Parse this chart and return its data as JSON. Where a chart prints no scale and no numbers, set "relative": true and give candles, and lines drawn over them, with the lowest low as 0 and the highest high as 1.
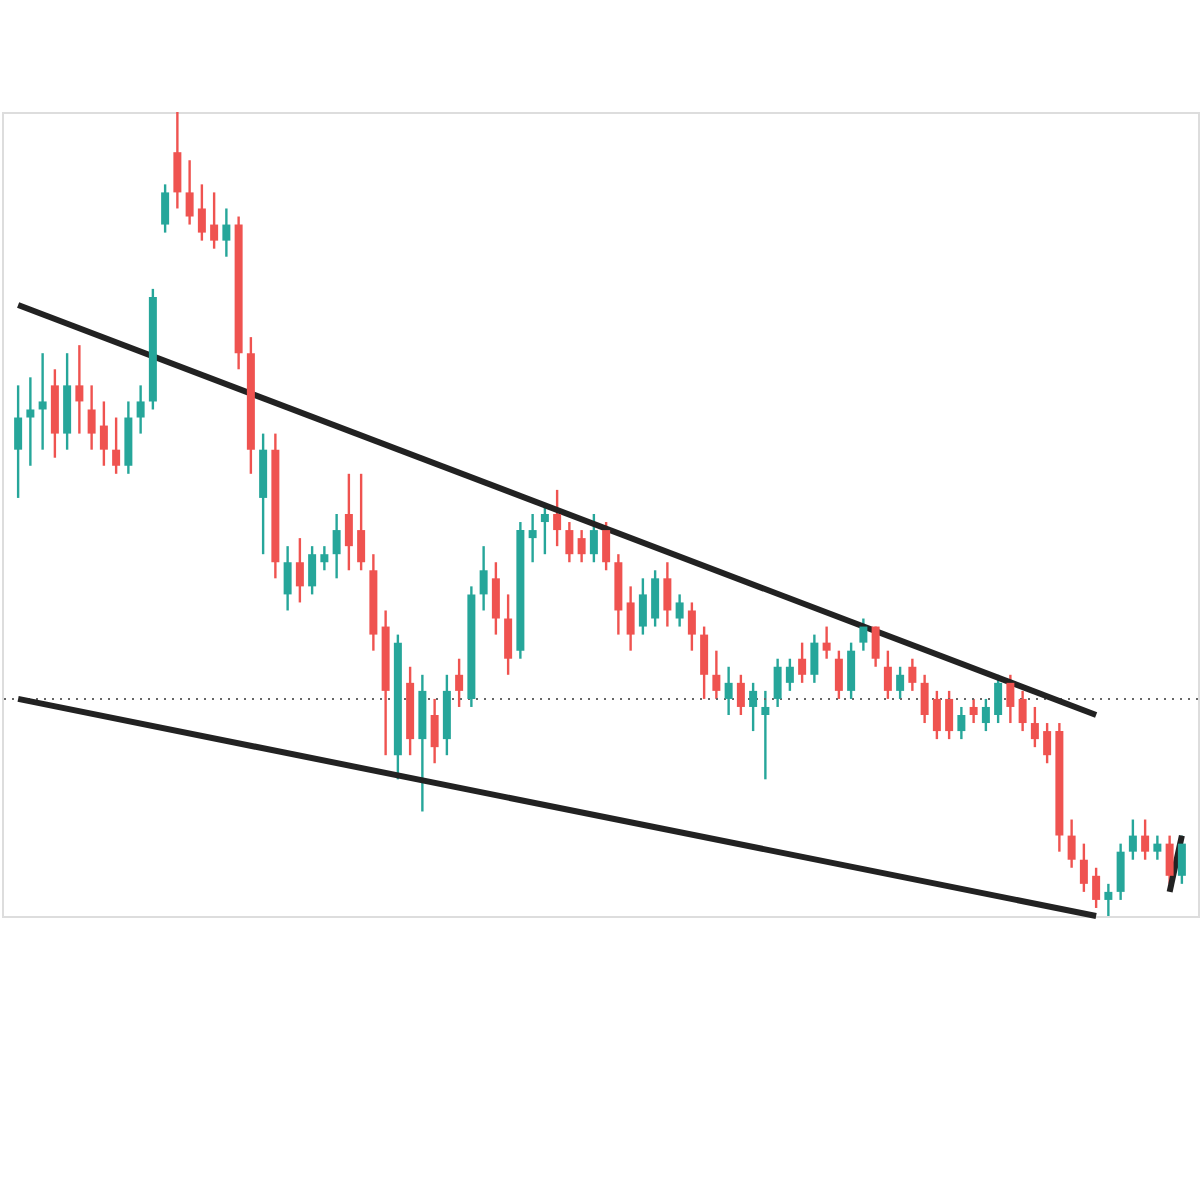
{
  "chart_data": {
    "type": "candlestick",
    "relative": true,
    "tick_labels": false,
    "categories": [
      null,
      null,
      null,
      null,
      null,
      null,
      null,
      null,
      null,
      null,
      null,
      null,
      null,
      null,
      null,
      null,
      null,
      null,
      null,
      null,
      null,
      null,
      null,
      null,
      null,
      null,
      null,
      null,
      null,
      null,
      null,
      null,
      null,
      null,
      null,
      null,
      null,
      null,
      null,
      null,
      null,
      null,
      null,
      null,
      null,
      null,
      null,
      null,
      null,
      null,
      null,
      null,
      null,
      null,
      null,
      null,
      null,
      null,
      null,
      null,
      null,
      null,
      null,
      null,
      null,
      null,
      null,
      null,
      null,
      null,
      null,
      null,
      null,
      null,
      null,
      null,
      null,
      null,
      null,
      null,
      null,
      null,
      null,
      null,
      null,
      null,
      null,
      null,
      null,
      null,
      null,
      null,
      null,
      null,
      null,
      null
    ],
    "ohlc": [
      [
        0.58,
        0.66,
        0.52,
        0.62
      ],
      [
        0.62,
        0.67,
        0.56,
        0.63
      ],
      [
        0.63,
        0.7,
        0.58,
        0.64
      ],
      [
        0.66,
        0.68,
        0.57,
        0.6
      ],
      [
        0.6,
        0.7,
        0.58,
        0.66
      ],
      [
        0.66,
        0.71,
        0.6,
        0.64
      ],
      [
        0.63,
        0.66,
        0.58,
        0.6
      ],
      [
        0.61,
        0.64,
        0.56,
        0.58
      ],
      [
        0.58,
        0.62,
        0.55,
        0.56
      ],
      [
        0.56,
        0.64,
        0.55,
        0.62
      ],
      [
        0.62,
        0.66,
        0.6,
        0.64
      ],
      [
        0.64,
        0.78,
        0.63,
        0.77
      ],
      [
        0.86,
        0.91,
        0.85,
        0.9
      ],
      [
        0.95,
        1.0,
        0.88,
        0.9
      ],
      [
        0.9,
        0.94,
        0.86,
        0.87
      ],
      [
        0.88,
        0.91,
        0.84,
        0.85
      ],
      [
        0.86,
        0.9,
        0.83,
        0.84
      ],
      [
        0.84,
        0.88,
        0.82,
        0.86
      ],
      [
        0.86,
        0.87,
        0.68,
        0.7
      ],
      [
        0.7,
        0.72,
        0.55,
        0.58
      ],
      [
        0.52,
        0.6,
        0.45,
        0.58
      ],
      [
        0.58,
        0.6,
        0.42,
        0.44
      ],
      [
        0.4,
        0.46,
        0.38,
        0.44
      ],
      [
        0.44,
        0.47,
        0.39,
        0.41
      ],
      [
        0.41,
        0.46,
        0.4,
        0.45
      ],
      [
        0.44,
        0.46,
        0.43,
        0.45
      ],
      [
        0.45,
        0.5,
        0.42,
        0.48
      ],
      [
        0.5,
        0.55,
        0.43,
        0.46
      ],
      [
        0.48,
        0.55,
        0.43,
        0.44
      ],
      [
        0.43,
        0.45,
        0.33,
        0.35
      ],
      [
        0.36,
        0.38,
        0.2,
        0.28
      ],
      [
        0.2,
        0.35,
        0.17,
        0.34
      ],
      [
        0.29,
        0.31,
        0.2,
        0.22
      ],
      [
        0.22,
        0.3,
        0.13,
        0.28
      ],
      [
        0.25,
        0.27,
        0.19,
        0.21
      ],
      [
        0.22,
        0.3,
        0.2,
        0.28
      ],
      [
        0.3,
        0.32,
        0.26,
        0.28
      ],
      [
        0.27,
        0.41,
        0.26,
        0.4
      ],
      [
        0.4,
        0.46,
        0.38,
        0.43
      ],
      [
        0.42,
        0.44,
        0.35,
        0.37
      ],
      [
        0.37,
        0.4,
        0.3,
        0.32
      ],
      [
        0.33,
        0.49,
        0.32,
        0.48
      ],
      [
        0.47,
        0.5,
        0.44,
        0.48
      ],
      [
        0.49,
        0.51,
        0.45,
        0.5
      ],
      [
        0.5,
        0.53,
        0.46,
        0.48
      ],
      [
        0.48,
        0.49,
        0.44,
        0.45
      ],
      [
        0.47,
        0.48,
        0.44,
        0.45
      ],
      [
        0.45,
        0.5,
        0.44,
        0.48
      ],
      [
        0.48,
        0.49,
        0.43,
        0.44
      ],
      [
        0.44,
        0.45,
        0.35,
        0.38
      ],
      [
        0.39,
        0.41,
        0.33,
        0.35
      ],
      [
        0.36,
        0.42,
        0.35,
        0.4
      ],
      [
        0.37,
        0.43,
        0.36,
        0.42
      ],
      [
        0.42,
        0.44,
        0.36,
        0.38
      ],
      [
        0.37,
        0.4,
        0.36,
        0.39
      ],
      [
        0.38,
        0.39,
        0.33,
        0.35
      ],
      [
        0.35,
        0.36,
        0.27,
        0.3
      ],
      [
        0.3,
        0.33,
        0.27,
        0.28
      ],
      [
        0.27,
        0.31,
        0.25,
        0.29
      ],
      [
        0.29,
        0.3,
        0.25,
        0.26
      ],
      [
        0.26,
        0.29,
        0.23,
        0.28
      ],
      [
        0.25,
        0.28,
        0.17,
        0.26
      ],
      [
        0.27,
        0.32,
        0.26,
        0.31
      ],
      [
        0.29,
        0.32,
        0.28,
        0.31
      ],
      [
        0.32,
        0.34,
        0.29,
        0.3
      ],
      [
        0.3,
        0.35,
        0.29,
        0.34
      ],
      [
        0.34,
        0.36,
        0.32,
        0.33
      ],
      [
        0.32,
        0.33,
        0.27,
        0.28
      ],
      [
        0.28,
        0.34,
        0.27,
        0.33
      ],
      [
        0.34,
        0.37,
        0.33,
        0.36
      ],
      [
        0.36,
        0.36,
        0.31,
        0.32
      ],
      [
        0.31,
        0.33,
        0.27,
        0.28
      ],
      [
        0.28,
        0.31,
        0.27,
        0.3
      ],
      [
        0.31,
        0.32,
        0.28,
        0.29
      ],
      [
        0.29,
        0.3,
        0.24,
        0.25
      ],
      [
        0.27,
        0.28,
        0.22,
        0.23
      ],
      [
        0.27,
        0.28,
        0.22,
        0.23
      ],
      [
        0.23,
        0.26,
        0.22,
        0.25
      ],
      [
        0.26,
        0.27,
        0.24,
        0.25
      ],
      [
        0.24,
        0.27,
        0.23,
        0.26
      ],
      [
        0.25,
        0.3,
        0.24,
        0.29
      ],
      [
        0.29,
        0.3,
        0.24,
        0.26
      ],
      [
        0.27,
        0.28,
        0.23,
        0.24
      ],
      [
        0.24,
        0.26,
        0.21,
        0.22
      ],
      [
        0.23,
        0.24,
        0.19,
        0.2
      ],
      [
        0.23,
        0.24,
        0.08,
        0.1
      ],
      [
        0.1,
        0.12,
        0.06,
        0.07
      ],
      [
        0.07,
        0.09,
        0.03,
        0.04
      ],
      [
        0.05,
        0.06,
        0.01,
        0.02
      ],
      [
        0.02,
        0.04,
        0.0,
        0.03
      ],
      [
        0.03,
        0.09,
        0.02,
        0.08
      ],
      [
        0.08,
        0.12,
        0.07,
        0.1
      ],
      [
        0.1,
        0.12,
        0.07,
        0.08
      ],
      [
        0.08,
        0.1,
        0.07,
        0.09
      ],
      [
        0.09,
        0.1,
        0.04,
        0.05
      ],
      [
        0.05,
        0.1,
        0.04,
        0.09
      ]
    ],
    "colors": [
      "#26a69a",
      "#26a69a",
      "#26a69a",
      "#ef5350",
      "#26a69a",
      "#ef5350",
      "#ef5350",
      "#ef5350",
      "#ef5350",
      "#26a69a",
      "#26a69a",
      "#26a69a",
      "#26a69a",
      "#ef5350",
      "#ef5350",
      "#ef5350",
      "#ef5350",
      "#26a69a",
      "#ef5350",
      "#ef5350",
      "#26a69a",
      "#ef5350",
      "#26a69a",
      "#ef5350",
      "#26a69a",
      "#26a69a",
      "#26a69a",
      "#ef5350",
      "#ef5350",
      "#ef5350",
      "#ef5350",
      "#26a69a",
      "#ef5350",
      "#26a69a",
      "#ef5350",
      "#26a69a",
      "#ef5350",
      "#26a69a",
      "#26a69a",
      "#ef5350",
      "#ef5350",
      "#26a69a",
      "#26a69a",
      "#26a69a",
      "#ef5350",
      "#ef5350",
      "#ef5350",
      "#26a69a",
      "#ef5350",
      "#ef5350",
      "#ef5350",
      "#26a69a",
      "#26a69a",
      "#ef5350",
      "#26a69a",
      "#ef5350",
      "#ef5350",
      "#ef5350",
      "#26a69a",
      "#ef5350",
      "#26a69a",
      "#26a69a",
      "#26a69a",
      "#26a69a",
      "#ef5350",
      "#26a69a",
      "#ef5350",
      "#ef5350",
      "#26a69a",
      "#26a69a",
      "#ef5350",
      "#ef5350",
      "#26a69a",
      "#ef5350",
      "#ef5350",
      "#ef5350",
      "#ef5350",
      "#26a69a",
      "#ef5350",
      "#26a69a",
      "#26a69a",
      "#ef5350",
      "#ef5350",
      "#ef5350",
      "#ef5350",
      "#ef5350",
      "#ef5350",
      "#ef5350",
      "#ef5350",
      "#26a69a",
      "#26a69a",
      "#26a69a",
      "#ef5350",
      "#26a69a",
      "#ef5350",
      "#26a69a"
    ],
    "series": [
      {
        "type": "line",
        "color": "#222222",
        "values": [
          0.76,
          null,
          null,
          null,
          null,
          null,
          null,
          null,
          null,
          null,
          null,
          null,
          null,
          null,
          null,
          null,
          null,
          null,
          null,
          null,
          null,
          null,
          null,
          null,
          null,
          null,
          null,
          null,
          null,
          null,
          null,
          null,
          null,
          null,
          null,
          null,
          null,
          null,
          null,
          null,
          null,
          null,
          null,
          null,
          null,
          null,
          null,
          null,
          null,
          null,
          null,
          null,
          null,
          null,
          null,
          null,
          null,
          null,
          null,
          null,
          null,
          null,
          null,
          null,
          null,
          null,
          null,
          null,
          null,
          null,
          null,
          null,
          null,
          null,
          null,
          null,
          null,
          null,
          null,
          null,
          null,
          null,
          null,
          null,
          null,
          null,
          null,
          null,
          0.25,
          null,
          null,
          null,
          null,
          null,
          null,
          null
        ]
      },
      {
        "type": "line",
        "color": "#222222",
        "values": [
          0.27,
          null,
          null,
          null,
          null,
          null,
          null,
          null,
          null,
          null,
          null,
          null,
          null,
          null,
          null,
          null,
          null,
          null,
          null,
          null,
          null,
          null,
          null,
          null,
          null,
          null,
          null,
          null,
          null,
          null,
          null,
          null,
          null,
          null,
          null,
          null,
          null,
          null,
          null,
          null,
          null,
          null,
          null,
          null,
          null,
          null,
          null,
          null,
          null,
          null,
          null,
          null,
          null,
          null,
          null,
          null,
          null,
          null,
          null,
          null,
          null,
          null,
          null,
          null,
          null,
          null,
          null,
          null,
          null,
          null,
          null,
          null,
          null,
          null,
          null,
          null,
          null,
          null,
          null,
          null,
          null,
          null,
          null,
          null,
          null,
          null,
          null,
          null,
          0.0,
          null,
          null,
          null,
          null,
          null,
          null,
          null
        ]
      },
      {
        "type": "line",
        "color": "#222222",
        "values": [
          null,
          null,
          null,
          null,
          null,
          null,
          null,
          null,
          null,
          null,
          null,
          null,
          null,
          null,
          null,
          null,
          null,
          null,
          null,
          null,
          null,
          null,
          null,
          null,
          null,
          null,
          null,
          null,
          null,
          null,
          null,
          null,
          null,
          null,
          null,
          null,
          null,
          null,
          null,
          null,
          null,
          null,
          null,
          null,
          null,
          null,
          null,
          null,
          null,
          null,
          null,
          null,
          null,
          null,
          null,
          null,
          null,
          null,
          null,
          null,
          null,
          null,
          null,
          null,
          null,
          null,
          null,
          null,
          null,
          null,
          null,
          null,
          null,
          null,
          null,
          null,
          null,
          null,
          null,
          null,
          null,
          null,
          null,
          null,
          null,
          null,
          null,
          null,
          null,
          null,
          null,
          null,
          null,
          null,
          0.03,
          0.1
        ]
      }
    ],
    "ref_lines": [
      {
        "axis": "y",
        "value": 0.27,
        "color": "#666666",
        "line_style": "dotted"
      }
    ]
  }
}
